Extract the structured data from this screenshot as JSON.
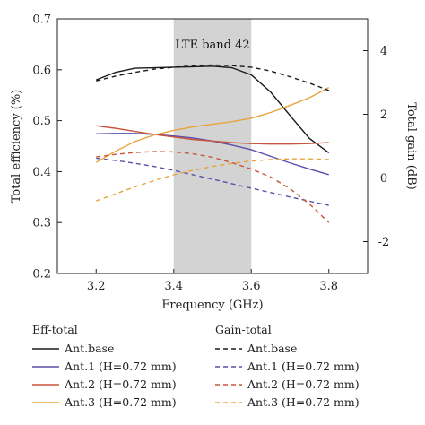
{
  "chart_data": {
    "type": "line",
    "band": {
      "label": "LTE band 42",
      "x": [
        3.4,
        3.6
      ],
      "color": "#d3d3d3"
    },
    "xlabel": "Frequency (GHz)",
    "ylabel_left": "Total efficiency (%)",
    "ylabel_right": "Total gain (dB)",
    "xlim": [
      3.1,
      3.9
    ],
    "ylim_left": [
      0.2,
      0.7
    ],
    "ylim_right": [
      -3,
      5
    ],
    "x_ticks": [
      3.2,
      3.4,
      3.6,
      3.8
    ],
    "x_tick_labels": [
      "3.2",
      "3.4",
      "3.6",
      "3.8"
    ],
    "y_left_ticks": [
      0.2,
      0.3,
      0.4,
      0.5,
      0.6,
      0.7
    ],
    "y_left_tick_labels": [
      "0.2",
      "0.3",
      "0.4",
      "0.5",
      "0.6",
      "0.7"
    ],
    "y_right_ticks": [
      -2,
      0,
      2,
      4
    ],
    "y_right_tick_labels": [
      "-2",
      "0",
      "2",
      "4"
    ],
    "x": [
      3.2,
      3.25,
      3.3,
      3.35,
      3.4,
      3.45,
      3.5,
      3.55,
      3.6,
      3.65,
      3.7,
      3.75,
      3.8
    ],
    "series": [
      {
        "name": "Ant.base",
        "group": "eff",
        "axis": "left",
        "color": "#1a1a1a",
        "dash": false,
        "values": [
          0.58,
          0.595,
          0.603,
          0.604,
          0.605,
          0.606,
          0.607,
          0.604,
          0.59,
          0.556,
          0.51,
          0.465,
          0.437
        ]
      },
      {
        "name": "Ant.1 (H=0.72 mm)",
        "group": "eff",
        "axis": "left",
        "color": "#5b4fa8",
        "dash": false,
        "values": [
          0.474,
          0.475,
          0.475,
          0.473,
          0.47,
          0.466,
          0.46,
          0.452,
          0.443,
          0.43,
          0.417,
          0.405,
          0.394
        ]
      },
      {
        "name": "Ant.2 (H=0.72 mm)",
        "group": "eff",
        "axis": "left",
        "color": "#c8553d",
        "dash": false,
        "values": [
          0.49,
          0.485,
          0.479,
          0.473,
          0.468,
          0.463,
          0.46,
          0.457,
          0.455,
          0.454,
          0.454,
          0.455,
          0.457
        ]
      },
      {
        "name": "Ant.3 (H=0.72 mm)",
        "group": "eff",
        "axis": "left",
        "color": "#e8a33c",
        "dash": false,
        "values": [
          0.418,
          0.44,
          0.459,
          0.472,
          0.481,
          0.488,
          0.493,
          0.498,
          0.505,
          0.516,
          0.53,
          0.545,
          0.565
        ]
      },
      {
        "name": "Ant.base",
        "group": "gain",
        "axis": "right",
        "color": "#1a1a1a",
        "dash": true,
        "values": [
          3.05,
          3.2,
          3.32,
          3.42,
          3.48,
          3.52,
          3.55,
          3.53,
          3.48,
          3.36,
          3.18,
          2.98,
          2.75
        ]
      },
      {
        "name": "Ant.1 (H=0.72 mm)",
        "group": "gain",
        "axis": "right",
        "color": "#5b4fa8",
        "dash": true,
        "values": [
          0.62,
          0.55,
          0.46,
          0.36,
          0.24,
          0.1,
          -0.04,
          -0.18,
          -0.32,
          -0.46,
          -0.6,
          -0.73,
          -0.86
        ]
      },
      {
        "name": "Ant.2 (H=0.72 mm)",
        "group": "gain",
        "axis": "right",
        "color": "#c8553d",
        "dash": true,
        "values": [
          0.66,
          0.74,
          0.8,
          0.83,
          0.82,
          0.76,
          0.65,
          0.48,
          0.28,
          0.03,
          -0.34,
          -0.82,
          -1.4
        ]
      },
      {
        "name": "Ant.3 (H=0.72 mm)",
        "group": "gain",
        "axis": "right",
        "color": "#e8a33c",
        "dash": true,
        "values": [
          -0.72,
          -0.5,
          -0.28,
          -0.08,
          0.1,
          0.24,
          0.36,
          0.46,
          0.53,
          0.58,
          0.6,
          0.6,
          0.58
        ]
      }
    ],
    "legend": {
      "placement": "bottom",
      "eff_title": "Eff-total",
      "gain_title": "Gain-total",
      "eff_entries": [
        "Ant.base",
        "Ant.1 (H=0.72 mm)",
        "Ant.2 (H=0.72 mm)",
        "Ant.3 (H=0.72 mm)"
      ],
      "gain_entries": [
        "Ant.base",
        "Ant.1 (H=0.72 mm)",
        "Ant.2 (H=0.72 mm)",
        "Ant.3 (H=0.72 mm)"
      ]
    },
    "grid": false
  }
}
